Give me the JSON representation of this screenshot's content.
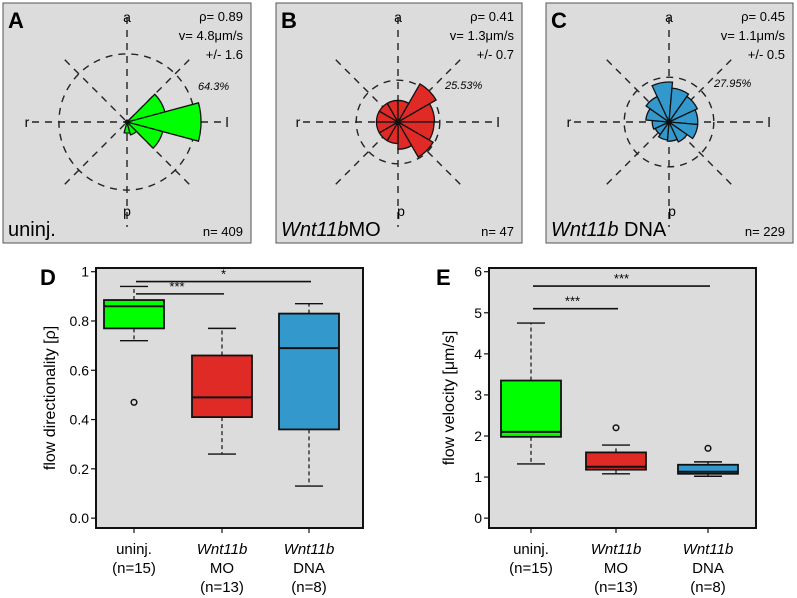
{
  "colors": {
    "panel_bg": "#dcdcdc",
    "uninj": "#00ff00",
    "mo": "#e02a26",
    "dna": "#3399cc",
    "axis": "#111111"
  },
  "chart_data": [
    {
      "type": "rose",
      "panel_label": "A",
      "condition_label": "uninj.",
      "condition_italic": "",
      "condition_rest": "uninj.",
      "rho_label": "ρ= 0.89",
      "velocity_label": "v= 4.8μm/s",
      "sd_label": "+/- 1.6",
      "n_label": "n= 409",
      "max_percent_label": "64.3%",
      "axis_labels": {
        "top": "a",
        "bottom": "p",
        "left": "r",
        "right": "l"
      },
      "color_key": "uninj",
      "ring_fraction": 0.92,
      "bin_width_deg": 30,
      "bins": [
        {
          "center_deg": 0,
          "value": 1.0
        },
        {
          "center_deg": 30,
          "value": 0.53
        },
        {
          "center_deg": -30,
          "value": 0.5
        },
        {
          "center_deg": 60,
          "value": 0.0
        },
        {
          "center_deg": 90,
          "value": 0.0
        },
        {
          "center_deg": 120,
          "value": 0.0
        },
        {
          "center_deg": 150,
          "value": 0.0
        },
        {
          "center_deg": 180,
          "value": 0.0
        },
        {
          "center_deg": -150,
          "value": 0.0
        },
        {
          "center_deg": -120,
          "value": 0.0
        },
        {
          "center_deg": -90,
          "value": 0.15
        },
        {
          "center_deg": -60,
          "value": 0.18
        }
      ]
    },
    {
      "type": "rose",
      "panel_label": "B",
      "condition_italic": "Wnt11b",
      "condition_rest": "MO",
      "rho_label": "ρ= 0.41",
      "velocity_label": "v= 1.3μm/s",
      "sd_label": "+/- 0.7",
      "n_label": "n= 47",
      "max_percent_label": "25.53%",
      "axis_labels": {
        "top": "a",
        "bottom": "p",
        "left": "r",
        "right": "l"
      },
      "color_key": "mo",
      "ring_fraction": 0.95,
      "bin_width_deg": 30,
      "bins": [
        {
          "center_deg": 45,
          "value": 1.0
        },
        {
          "center_deg": 15,
          "value": 0.83
        },
        {
          "center_deg": -15,
          "value": 0.82
        },
        {
          "center_deg": -45,
          "value": 0.92
        },
        {
          "center_deg": -75,
          "value": 0.62
        },
        {
          "center_deg": -105,
          "value": 0.49
        },
        {
          "center_deg": -135,
          "value": 0.49
        },
        {
          "center_deg": -165,
          "value": 0.49
        },
        {
          "center_deg": 165,
          "value": 0.49
        },
        {
          "center_deg": 135,
          "value": 0.49
        },
        {
          "center_deg": 105,
          "value": 0.49
        },
        {
          "center_deg": 75,
          "value": 0.49
        }
      ]
    },
    {
      "type": "rose",
      "panel_label": "C",
      "condition_italic": "Wnt11b",
      "condition_rest": " DNA",
      "rho_label": "ρ= 0.45",
      "velocity_label": "v= 1.1μm/s",
      "sd_label": "+/- 0.5",
      "n_label": "n= 229",
      "max_percent_label": "27.95%",
      "axis_labels": {
        "top": "a",
        "bottom": "p",
        "left": "r",
        "right": "l"
      },
      "color_key": "dna",
      "ring_fraction": 1.12,
      "bin_width_deg": 30,
      "bins": [
        {
          "center_deg": 100,
          "value": 1.0
        },
        {
          "center_deg": 70,
          "value": 0.85
        },
        {
          "center_deg": 40,
          "value": 0.78
        },
        {
          "center_deg": 10,
          "value": 0.72
        },
        {
          "center_deg": -20,
          "value": 0.72
        },
        {
          "center_deg": -50,
          "value": 0.55
        },
        {
          "center_deg": -80,
          "value": 0.48
        },
        {
          "center_deg": -110,
          "value": 0.45
        },
        {
          "center_deg": -140,
          "value": 0.38
        },
        {
          "center_deg": -170,
          "value": 0.42
        },
        {
          "center_deg": 160,
          "value": 0.58
        },
        {
          "center_deg": 130,
          "value": 0.7
        }
      ]
    },
    {
      "type": "boxplot",
      "panel_label": "D",
      "ylabel": "flow directionality [ρ]",
      "ylim": [
        -0.04,
        1.015
      ],
      "yticks": [
        0.0,
        0.2,
        0.4,
        0.6,
        0.8,
        1.0
      ],
      "ytick_labels": [
        "0.0",
        "0.2",
        "0.4",
        "0.6",
        "0.8",
        "1"
      ],
      "grid": false,
      "categories": [
        {
          "lines": [
            {
              "italic": "",
              "text": "uninj."
            },
            {
              "italic": "",
              "text": "(n=15)"
            }
          ]
        },
        {
          "lines": [
            {
              "italic": "Wnt11b",
              "text": ""
            },
            {
              "italic": "",
              "text": "MO"
            },
            {
              "italic": "",
              "text": "(n=13)"
            }
          ]
        },
        {
          "lines": [
            {
              "italic": "Wnt11b",
              "text": ""
            },
            {
              "italic": "",
              "text": "DNA"
            },
            {
              "italic": "",
              "text": "(n=8)"
            }
          ]
        }
      ],
      "boxes": [
        {
          "color_key": "uninj",
          "whisker_low": 0.72,
          "q1": 0.77,
          "median": 0.86,
          "q3": 0.885,
          "whisker_high": 0.94,
          "outliers": [
            0.47
          ]
        },
        {
          "color_key": "mo",
          "whisker_low": 0.26,
          "q1": 0.41,
          "median": 0.49,
          "q3": 0.66,
          "whisker_high": 0.77,
          "outliers": []
        },
        {
          "color_key": "dna",
          "whisker_low": 0.13,
          "q1": 0.36,
          "median": 0.69,
          "q3": 0.83,
          "whisker_high": 0.87,
          "outliers": []
        }
      ],
      "significance": [
        {
          "from": 0,
          "to": 1,
          "y": 0.91,
          "label": "***"
        },
        {
          "from": 0,
          "to": 2,
          "y": 0.96,
          "label": "*"
        }
      ]
    },
    {
      "type": "boxplot",
      "panel_label": "E",
      "ylabel": "flow velocity [μm/s]",
      "ylim": [
        -0.24,
        6.09
      ],
      "yticks": [
        0,
        1,
        2,
        3,
        4,
        5,
        6
      ],
      "ytick_labels": [
        "0",
        "1",
        "2",
        "3",
        "4",
        "5",
        "6"
      ],
      "grid": false,
      "categories": [
        {
          "lines": [
            {
              "italic": "",
              "text": "uninj."
            },
            {
              "italic": "",
              "text": "(n=15)"
            }
          ]
        },
        {
          "lines": [
            {
              "italic": "Wnt11b",
              "text": ""
            },
            {
              "italic": "",
              "text": "MO"
            },
            {
              "italic": "",
              "text": "(n=13)"
            }
          ]
        },
        {
          "lines": [
            {
              "italic": "Wnt11b",
              "text": ""
            },
            {
              "italic": "",
              "text": "DNA"
            },
            {
              "italic": "",
              "text": "(n=8)"
            }
          ]
        }
      ],
      "boxes": [
        {
          "color_key": "uninj",
          "whisker_low": 1.32,
          "q1": 1.98,
          "median": 2.1,
          "q3": 3.35,
          "whisker_high": 4.75,
          "outliers": []
        },
        {
          "color_key": "mo",
          "whisker_low": 1.08,
          "q1": 1.18,
          "median": 1.25,
          "q3": 1.6,
          "whisker_high": 1.78,
          "outliers": [
            2.2
          ]
        },
        {
          "color_key": "dna",
          "whisker_low": 1.02,
          "q1": 1.08,
          "median": 1.13,
          "q3": 1.3,
          "whisker_high": 1.37,
          "outliers": [
            1.7
          ]
        }
      ],
      "significance": [
        {
          "from": 0,
          "to": 1,
          "y": 5.1,
          "label": "***"
        },
        {
          "from": 0,
          "to": 2,
          "y": 5.65,
          "label": "***"
        }
      ]
    }
  ]
}
